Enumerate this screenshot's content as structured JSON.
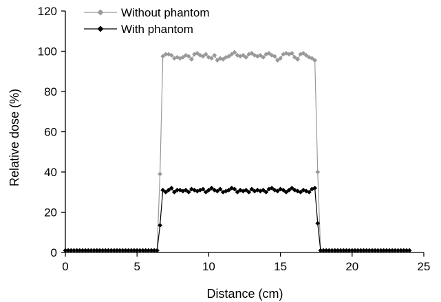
{
  "chart_data": {
    "type": "line",
    "title": "",
    "xlabel": "Distance (cm)",
    "ylabel": "Relative dose (%)",
    "xlim": [
      0,
      25
    ],
    "ylim": [
      0,
      120
    ],
    "xticks": [
      0,
      5,
      10,
      15,
      20,
      25
    ],
    "yticks": [
      0,
      20,
      40,
      60,
      80,
      100,
      120
    ],
    "grid": false,
    "legend_position": "top-left",
    "series": [
      {
        "name": "Without phantom",
        "color": "#999999",
        "marker": "diamond",
        "points": [
          [
            0.0,
            1
          ],
          [
            0.2,
            1
          ],
          [
            0.4,
            1
          ],
          [
            0.6,
            1
          ],
          [
            0.8,
            1
          ],
          [
            1.0,
            1
          ],
          [
            1.2,
            1
          ],
          [
            1.4,
            1
          ],
          [
            1.6,
            1
          ],
          [
            1.8,
            1
          ],
          [
            2.0,
            1
          ],
          [
            2.2,
            1
          ],
          [
            2.4,
            1
          ],
          [
            2.6,
            1
          ],
          [
            2.8,
            1
          ],
          [
            3.0,
            1
          ],
          [
            3.2,
            1
          ],
          [
            3.4,
            1
          ],
          [
            3.6,
            1
          ],
          [
            3.8,
            1
          ],
          [
            4.0,
            1
          ],
          [
            4.2,
            1
          ],
          [
            4.4,
            1
          ],
          [
            4.6,
            1
          ],
          [
            4.8,
            1
          ],
          [
            5.0,
            1
          ],
          [
            5.2,
            1
          ],
          [
            5.4,
            1
          ],
          [
            5.6,
            1
          ],
          [
            5.8,
            1
          ],
          [
            6.0,
            1
          ],
          [
            6.2,
            1
          ],
          [
            6.4,
            1
          ],
          [
            6.6,
            39
          ],
          [
            6.8,
            97.5
          ],
          [
            7.0,
            98.5
          ],
          [
            7.2,
            98.5
          ],
          [
            7.4,
            98
          ],
          [
            7.6,
            96.5
          ],
          [
            7.8,
            97
          ],
          [
            8.0,
            96.5
          ],
          [
            8.2,
            97
          ],
          [
            8.4,
            98
          ],
          [
            8.6,
            97.5
          ],
          [
            8.8,
            96
          ],
          [
            9.0,
            98.5
          ],
          [
            9.2,
            99
          ],
          [
            9.4,
            98
          ],
          [
            9.6,
            97.5
          ],
          [
            9.8,
            98.5
          ],
          [
            10.0,
            97
          ],
          [
            10.2,
            96.5
          ],
          [
            10.4,
            98
          ],
          [
            10.6,
            95.5
          ],
          [
            10.8,
            96.5
          ],
          [
            11.0,
            96
          ],
          [
            11.2,
            97
          ],
          [
            11.4,
            97.5
          ],
          [
            11.6,
            98.5
          ],
          [
            11.8,
            99.5
          ],
          [
            12.0,
            98
          ],
          [
            12.2,
            97.5
          ],
          [
            12.4,
            98
          ],
          [
            12.6,
            97
          ],
          [
            12.8,
            98.5
          ],
          [
            13.0,
            99
          ],
          [
            13.2,
            98
          ],
          [
            13.4,
            97.5
          ],
          [
            13.6,
            98
          ],
          [
            13.8,
            97
          ],
          [
            14.0,
            98.5
          ],
          [
            14.2,
            99
          ],
          [
            14.4,
            98
          ],
          [
            14.6,
            97.5
          ],
          [
            14.8,
            95.5
          ],
          [
            15.0,
            96.5
          ],
          [
            15.2,
            98.5
          ],
          [
            15.4,
            99
          ],
          [
            15.6,
            98.5
          ],
          [
            15.8,
            99
          ],
          [
            16.0,
            97
          ],
          [
            16.2,
            96
          ],
          [
            16.4,
            98.5
          ],
          [
            16.6,
            99
          ],
          [
            16.8,
            98
          ],
          [
            17.0,
            97
          ],
          [
            17.2,
            96.5
          ],
          [
            17.4,
            95.5
          ],
          [
            17.6,
            40
          ],
          [
            17.8,
            1
          ],
          [
            18.0,
            1
          ],
          [
            18.2,
            1
          ],
          [
            18.4,
            1
          ],
          [
            18.6,
            1
          ],
          [
            18.8,
            1
          ],
          [
            19.0,
            1
          ],
          [
            19.2,
            1
          ],
          [
            19.4,
            1
          ],
          [
            19.6,
            1
          ],
          [
            19.8,
            1
          ],
          [
            20.0,
            1
          ],
          [
            20.2,
            1
          ],
          [
            20.4,
            1
          ],
          [
            20.6,
            1
          ],
          [
            20.8,
            1
          ],
          [
            21.0,
            1
          ],
          [
            21.2,
            1
          ],
          [
            21.4,
            1
          ],
          [
            21.6,
            1
          ],
          [
            21.8,
            1
          ],
          [
            22.0,
            1
          ],
          [
            22.2,
            1
          ],
          [
            22.4,
            1
          ],
          [
            22.6,
            1
          ],
          [
            22.8,
            1
          ],
          [
            23.0,
            1
          ],
          [
            23.2,
            1
          ],
          [
            23.4,
            1
          ],
          [
            23.6,
            1
          ],
          [
            23.8,
            1
          ],
          [
            24.0,
            1
          ]
        ]
      },
      {
        "name": "With phantom",
        "color": "#000000",
        "marker": "diamond",
        "points": [
          [
            0.0,
            1
          ],
          [
            0.2,
            1
          ],
          [
            0.4,
            1
          ],
          [
            0.6,
            1
          ],
          [
            0.8,
            1
          ],
          [
            1.0,
            1
          ],
          [
            1.2,
            1
          ],
          [
            1.4,
            1
          ],
          [
            1.6,
            1
          ],
          [
            1.8,
            1
          ],
          [
            2.0,
            1
          ],
          [
            2.2,
            1
          ],
          [
            2.4,
            1
          ],
          [
            2.6,
            1
          ],
          [
            2.8,
            1
          ],
          [
            3.0,
            1
          ],
          [
            3.2,
            1
          ],
          [
            3.4,
            1
          ],
          [
            3.6,
            1
          ],
          [
            3.8,
            1
          ],
          [
            4.0,
            1
          ],
          [
            4.2,
            1
          ],
          [
            4.4,
            1
          ],
          [
            4.6,
            1
          ],
          [
            4.8,
            1
          ],
          [
            5.0,
            1
          ],
          [
            5.2,
            1
          ],
          [
            5.4,
            1
          ],
          [
            5.6,
            1
          ],
          [
            5.8,
            1
          ],
          [
            6.0,
            1
          ],
          [
            6.2,
            1
          ],
          [
            6.4,
            1
          ],
          [
            6.6,
            13.5
          ],
          [
            6.8,
            31
          ],
          [
            7.0,
            30
          ],
          [
            7.2,
            31
          ],
          [
            7.4,
            32
          ],
          [
            7.6,
            30
          ],
          [
            7.8,
            31
          ],
          [
            8.0,
            31
          ],
          [
            8.2,
            30.5
          ],
          [
            8.4,
            31
          ],
          [
            8.6,
            30
          ],
          [
            8.8,
            31.5
          ],
          [
            9.0,
            31
          ],
          [
            9.2,
            30.5
          ],
          [
            9.4,
            31
          ],
          [
            9.6,
            31.5
          ],
          [
            9.8,
            30
          ],
          [
            10.0,
            31
          ],
          [
            10.2,
            32
          ],
          [
            10.4,
            31
          ],
          [
            10.6,
            30.5
          ],
          [
            10.8,
            31.5
          ],
          [
            11.0,
            30
          ],
          [
            11.2,
            30.5
          ],
          [
            11.4,
            31
          ],
          [
            11.6,
            32
          ],
          [
            11.8,
            31.5
          ],
          [
            12.0,
            30
          ],
          [
            12.2,
            31
          ],
          [
            12.4,
            30.5
          ],
          [
            12.6,
            31
          ],
          [
            12.8,
            30
          ],
          [
            13.0,
            31.5
          ],
          [
            13.2,
            30.5
          ],
          [
            13.4,
            31
          ],
          [
            13.6,
            30.5
          ],
          [
            13.8,
            31
          ],
          [
            14.0,
            30
          ],
          [
            14.2,
            31.5
          ],
          [
            14.4,
            32
          ],
          [
            14.6,
            31
          ],
          [
            14.8,
            30.5
          ],
          [
            15.0,
            31.5
          ],
          [
            15.2,
            31
          ],
          [
            15.4,
            30
          ],
          [
            15.6,
            31
          ],
          [
            15.8,
            32
          ],
          [
            16.0,
            31
          ],
          [
            16.2,
            30.5
          ],
          [
            16.4,
            30
          ],
          [
            16.6,
            31
          ],
          [
            16.8,
            30.5
          ],
          [
            17.0,
            30
          ],
          [
            17.2,
            31.5
          ],
          [
            17.4,
            32
          ],
          [
            17.6,
            14.5
          ],
          [
            17.8,
            1
          ],
          [
            18.0,
            1
          ],
          [
            18.2,
            1
          ],
          [
            18.4,
            1
          ],
          [
            18.6,
            1
          ],
          [
            18.8,
            1
          ],
          [
            19.0,
            1
          ],
          [
            19.2,
            1
          ],
          [
            19.4,
            1
          ],
          [
            19.6,
            1
          ],
          [
            19.8,
            1
          ],
          [
            20.0,
            1
          ],
          [
            20.2,
            1
          ],
          [
            20.4,
            1
          ],
          [
            20.6,
            1
          ],
          [
            20.8,
            1
          ],
          [
            21.0,
            1
          ],
          [
            21.2,
            1
          ],
          [
            21.4,
            1
          ],
          [
            21.6,
            1
          ],
          [
            21.8,
            1
          ],
          [
            22.0,
            1
          ],
          [
            22.2,
            1
          ],
          [
            22.4,
            1
          ],
          [
            22.6,
            1
          ],
          [
            22.8,
            1
          ],
          [
            23.0,
            1
          ],
          [
            23.2,
            1
          ],
          [
            23.4,
            1
          ],
          [
            23.6,
            1
          ],
          [
            23.8,
            1
          ],
          [
            24.0,
            1
          ]
        ]
      }
    ]
  }
}
